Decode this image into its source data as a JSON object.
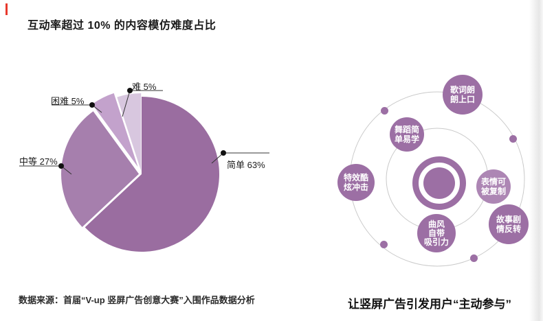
{
  "accent_color": "#e8382c",
  "title": "互动率超过 10% 的内容模仿难度占比",
  "source_note": "数据来源：首届“V-up 竖屏广告创意大赛”入围作品数据分析",
  "chart_data": {
    "type": "pie",
    "title": "互动率超过 10% 的内容模仿难度占比",
    "categories": [
      "简单",
      "中等",
      "困难",
      "难"
    ],
    "values": [
      63,
      27,
      5,
      5
    ],
    "unit": "%",
    "labels": [
      "简单 63%",
      "中等 27%",
      "困难 5%",
      "难 5%"
    ],
    "colors": [
      "#9a6da0",
      "#a67fad",
      "#c3a2cc",
      "#d8c7df"
    ],
    "start_angle": "12-oclock",
    "direction": "clockwise",
    "legend": "none",
    "callout_style": "black line with dot"
  },
  "diagram": {
    "caption": "让竖屏广告引发用户“主动参与”",
    "bubble_color": "#9c6fa4",
    "bubble_color_light": "#ad86b4",
    "orbit_color": "#c9c9c9",
    "center_icon": "concentric-circles",
    "bubbles": [
      {
        "label": "歌词朗朗上口",
        "lines": [
          "歌词朗",
          "朗上口"
        ]
      },
      {
        "label": "舞蹈简单易学",
        "lines": [
          "舞蹈简",
          "单易学"
        ]
      },
      {
        "label": "特效酷炫冲击",
        "lines": [
          "特效酷",
          "炫冲击"
        ]
      },
      {
        "label": "表情可被复制",
        "lines": [
          "表情可",
          "被复制"
        ]
      },
      {
        "label": "曲风自带吸引力",
        "lines": [
          "曲风",
          "自带",
          "吸引力"
        ]
      },
      {
        "label": "故事剧情反转",
        "lines": [
          "故事剧",
          "情反转"
        ]
      }
    ]
  }
}
